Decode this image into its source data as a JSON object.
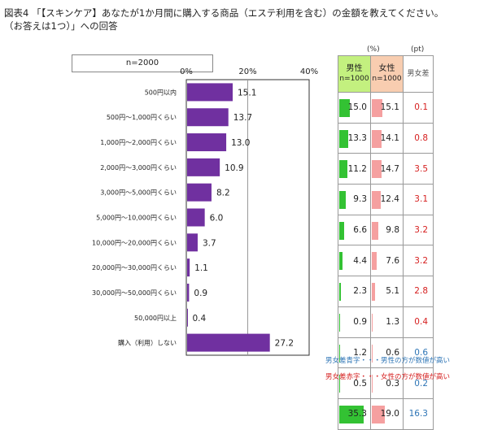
{
  "title": "図表4 「【スキンケア】あなたが1か月間に購入する商品（エステ利用を含む）の金額を教えてください。\n（お答えは1つ）」への回答",
  "n_label": "n=2000",
  "chart_data": {
    "type": "bar",
    "orientation": "horizontal",
    "categories": [
      "500円以内",
      "500円～1,000円くらい",
      "1,000円～2,000円くらい",
      "2,000円～3,000円くらい",
      "3,000円～5,000円くらい",
      "5,000円～10,000円くらい",
      "10,000円～20,000円くらい",
      "20,000円～30,000円くらい",
      "30,000円～50,000円くらい",
      "50,000円以上",
      "購入（利用）しない"
    ],
    "values": [
      15.1,
      13.7,
      13.0,
      10.9,
      8.2,
      6.0,
      3.7,
      1.1,
      0.9,
      0.4,
      27.2
    ],
    "value_labels": [
      "15.1",
      "13.7",
      "13.0",
      "10.9",
      "8.2",
      "6.0",
      "3.7",
      "1.1",
      "0.9",
      "0.4",
      "27.2"
    ],
    "xlim": [
      0,
      40
    ],
    "ticks": [
      "0%",
      "20%",
      "40%"
    ],
    "tick_values": [
      0,
      20,
      40
    ],
    "grid": "vertical line at 20%",
    "colors": {
      "bar": "#7030a0",
      "male": "#33c233",
      "female": "#f5a0a0",
      "male_higher": "#2e75b6",
      "female_higher": "#d62020"
    }
  },
  "table": {
    "unit_left": "(%)",
    "unit_right": "(pt)",
    "headers": {
      "male": "男性",
      "female": "女性",
      "n": "n=1000",
      "diff": "男女差"
    },
    "rows": [
      {
        "male": "15.0",
        "male_val": 15.0,
        "female": "15.1",
        "female_val": 15.1,
        "diff": "0.1",
        "diff_color": "#d62020"
      },
      {
        "male": "13.3",
        "male_val": 13.3,
        "female": "14.1",
        "female_val": 14.1,
        "diff": "0.8",
        "diff_color": "#d62020"
      },
      {
        "male": "11.2",
        "male_val": 11.2,
        "female": "14.7",
        "female_val": 14.7,
        "diff": "3.5",
        "diff_color": "#d62020"
      },
      {
        "male": "9.3",
        "male_val": 9.3,
        "female": "12.4",
        "female_val": 12.4,
        "diff": "3.1",
        "diff_color": "#d62020"
      },
      {
        "male": "6.6",
        "male_val": 6.6,
        "female": "9.8",
        "female_val": 9.8,
        "diff": "3.2",
        "diff_color": "#d62020"
      },
      {
        "male": "4.4",
        "male_val": 4.4,
        "female": "7.6",
        "female_val": 7.6,
        "diff": "3.2",
        "diff_color": "#d62020"
      },
      {
        "male": "2.3",
        "male_val": 2.3,
        "female": "5.1",
        "female_val": 5.1,
        "diff": "2.8",
        "diff_color": "#d62020"
      },
      {
        "male": "0.9",
        "male_val": 0.9,
        "female": "1.3",
        "female_val": 1.3,
        "diff": "0.4",
        "diff_color": "#d62020"
      },
      {
        "male": "1.2",
        "male_val": 1.2,
        "female": "0.6",
        "female_val": 0.6,
        "diff": "0.6",
        "diff_color": "#2e75b6"
      },
      {
        "male": "0.5",
        "male_val": 0.5,
        "female": "0.3",
        "female_val": 0.3,
        "diff": "0.2",
        "diff_color": "#2e75b6"
      },
      {
        "male": "35.3",
        "male_val": 35.3,
        "female": "19.0",
        "female_val": 19.0,
        "diff": "16.3",
        "diff_color": "#2e75b6"
      }
    ]
  },
  "notes": {
    "blue": "男女差青字・・・男性の方が数値が高い",
    "red": "男女差赤字・・・女性の方が数値が高い"
  }
}
